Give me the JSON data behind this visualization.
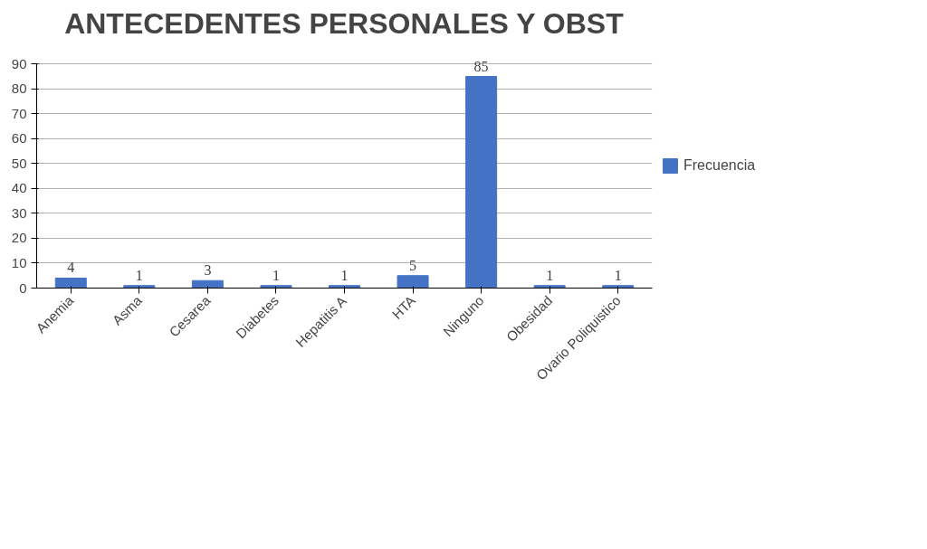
{
  "chart_data": {
    "type": "bar",
    "title": "ANTECEDENTES PERSONALES Y OBST",
    "categories": [
      "Anemia",
      "Asma",
      "Cesarea",
      "Diabetes",
      "Hepatitis A",
      "HTA",
      "Ninguno",
      "Obesidad",
      "Ovario Poliquistico"
    ],
    "series": [
      {
        "name": "Frecuencia",
        "color": "#4472c4",
        "values": [
          4,
          1,
          3,
          1,
          1,
          5,
          85,
          1,
          1
        ]
      }
    ],
    "ylim": [
      0,
      90
    ],
    "yticks": [
      0,
      10,
      20,
      30,
      40,
      50,
      60,
      70,
      80,
      90
    ],
    "grid": "y",
    "legend": "right",
    "data_labels": true
  }
}
